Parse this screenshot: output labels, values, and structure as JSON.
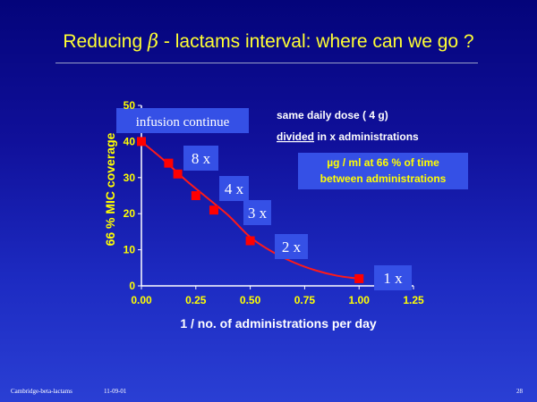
{
  "slide": {
    "title_pre": "Reducing ",
    "title_symbol": "β",
    "title_post": " - lactams interval: where can we go ?",
    "footer_left": "Cambridge-beta-lactams",
    "footer_date": "11-09-01",
    "page_number": "28"
  },
  "colors": {
    "title": "#ffff33",
    "axis_text": "#ffff00",
    "curve": "#ff1a1a",
    "marker": "#ff0000",
    "box_fill": "#3550e6"
  },
  "chart_data": {
    "type": "scatter",
    "xlabel": "1 / no. of administrations per day",
    "ylabel": "66 % MIC coverage",
    "xlim": [
      0,
      1.25
    ],
    "ylim": [
      0,
      50
    ],
    "x_ticks": [
      "0.00",
      "0.25",
      "0.50",
      "0.75",
      "1.00",
      "1.25"
    ],
    "y_ticks": [
      "0",
      "10",
      "20",
      "30",
      "40",
      "50"
    ],
    "series": [
      {
        "x": [
          0.0,
          0.125,
          0.167,
          0.25,
          0.333,
          0.5,
          1.0
        ],
        "y": [
          40,
          34,
          31,
          25,
          21,
          12.5,
          2
        ]
      }
    ],
    "curve": {
      "x": [
        0.0,
        0.1,
        0.2,
        0.3,
        0.4,
        0.5,
        0.6,
        0.7,
        0.8,
        0.9,
        1.0
      ],
      "y": [
        40,
        35,
        29.5,
        24.5,
        19.5,
        13.5,
        9.5,
        6.5,
        4.3,
        2.8,
        2
      ]
    },
    "point_labels": [
      {
        "text": "infusion continue",
        "x": 0.0,
        "y": 40
      },
      {
        "text": "8 x",
        "x": 0.125,
        "y": 34
      },
      {
        "text": "4 x",
        "x": 0.25,
        "y": 25
      },
      {
        "text": "3 x",
        "x": 0.333,
        "y": 21
      },
      {
        "text": "2 x",
        "x": 0.5,
        "y": 12.5
      },
      {
        "text": "1 x",
        "x": 1.0,
        "y": 2
      }
    ],
    "annotations": {
      "dose_line1": "same daily dose ( 4 g)",
      "dose_line2_underlined": "divided",
      "dose_line2_rest": " in x administrations",
      "box_line1": "µg / ml at 66 % of time",
      "box_line2": "between administrations"
    }
  }
}
